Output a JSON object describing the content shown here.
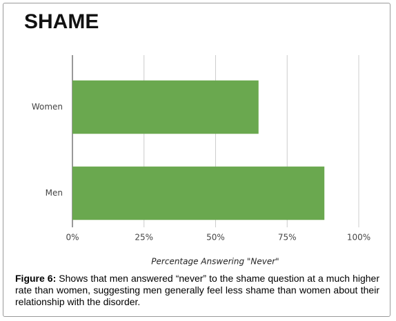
{
  "chart_data": {
    "type": "hbar",
    "title": "SHAME",
    "categories": [
      "Women",
      "Men"
    ],
    "values": [
      65,
      88
    ],
    "color": "#6aa84f",
    "xlabel": "Percentage Answering \"Never\"",
    "xlim": [
      0,
      100
    ],
    "xticks": [
      {
        "value": 0,
        "label": "0%"
      },
      {
        "value": 25,
        "label": "25%"
      },
      {
        "value": 50,
        "label": "50%"
      },
      {
        "value": 75,
        "label": "75%"
      },
      {
        "value": 100,
        "label": "100%"
      }
    ],
    "grid": true
  },
  "caption": {
    "label": "Figure 6:",
    "text": "Shows that men answered “never” to the shame question at a much higher rate than women, suggesting men generally feel less shame than women about their relationship with the disorder."
  }
}
